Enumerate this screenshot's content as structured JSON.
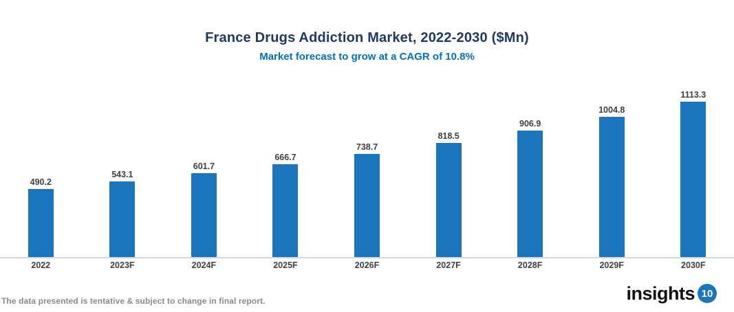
{
  "header": {
    "title": "France Drugs Addiction Market, 2022-2030 ($Mn)",
    "subtitle": "Market forecast to grow at a CAGR of 10.8%"
  },
  "chart_data": {
    "type": "bar",
    "categories": [
      "2022",
      "2023F",
      "2024F",
      "2025F",
      "2026F",
      "2027F",
      "2028F",
      "2029F",
      "2030F"
    ],
    "values": [
      490.2,
      543.1,
      601.7,
      666.7,
      738.7,
      818.5,
      906.9,
      1004.8,
      1113.3
    ],
    "title": "France Drugs Addiction Market, 2022-2030 ($Mn)",
    "subtitle": "Market forecast to grow at a CAGR of 10.8%",
    "xlabel": "",
    "ylabel": "",
    "ylim": [
      0,
      1250
    ],
    "value_labels": true,
    "grid": false,
    "legend": false,
    "bar_color": "#1B75BC"
  },
  "footer": {
    "disclaimer": "The data presented is tentative & subject to change in final report.",
    "logo_text": "insights",
    "logo_number": "10"
  },
  "colors": {
    "title_text": "#1F3864",
    "subtitle_text": "#0070C0",
    "bar": "#1B75BC",
    "axis_line": "#D6D6D6",
    "data_label": "#3F3F3F",
    "footer_text": "#8A8A8A"
  }
}
